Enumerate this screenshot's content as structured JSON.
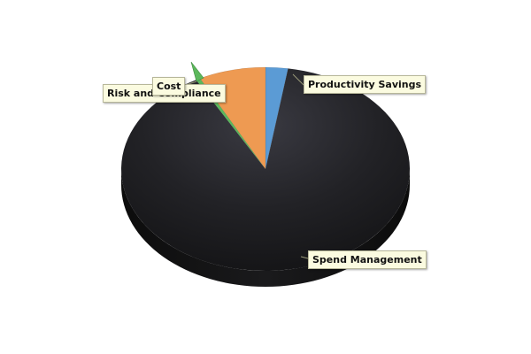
{
  "chart_data": {
    "type": "pie",
    "style": "3d",
    "slices": [
      {
        "label": "Productivity Savings",
        "value": 2.5,
        "color": "#5b9bd5"
      },
      {
        "label": "Spend Management",
        "value": 89.5,
        "color": "#1c1c1f"
      },
      {
        "label": "Risk and Compliance",
        "value": 0.5,
        "color": "#5cb85c"
      },
      {
        "label": "Cost",
        "value": 7.5,
        "color": "#ee9a52"
      }
    ],
    "legend": "none",
    "labels": "callouts"
  }
}
